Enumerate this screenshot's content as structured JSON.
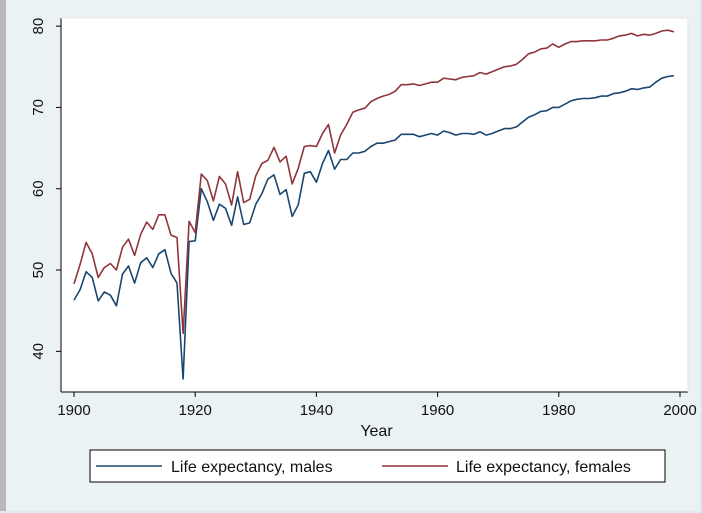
{
  "chart_data": {
    "type": "line",
    "xlabel": "Year",
    "ylabel": "",
    "xlim": [
      1900,
      2000
    ],
    "ylim": [
      35,
      81
    ],
    "xticks": [
      1900,
      1920,
      1940,
      1960,
      1980,
      2000
    ],
    "yticks": [
      40,
      50,
      60,
      70,
      80
    ],
    "grid": false,
    "legend_position": "bottom",
    "x": [
      1900,
      1901,
      1902,
      1903,
      1904,
      1905,
      1906,
      1907,
      1908,
      1909,
      1910,
      1911,
      1912,
      1913,
      1914,
      1915,
      1916,
      1917,
      1918,
      1919,
      1920,
      1921,
      1922,
      1923,
      1924,
      1925,
      1926,
      1927,
      1928,
      1929,
      1930,
      1931,
      1932,
      1933,
      1934,
      1935,
      1936,
      1937,
      1938,
      1939,
      1940,
      1941,
      1942,
      1943,
      1944,
      1945,
      1946,
      1947,
      1948,
      1949,
      1950,
      1951,
      1952,
      1953,
      1954,
      1955,
      1956,
      1957,
      1958,
      1959,
      1960,
      1961,
      1962,
      1963,
      1964,
      1965,
      1966,
      1967,
      1968,
      1969,
      1970,
      1971,
      1972,
      1973,
      1974,
      1975,
      1976,
      1977,
      1978,
      1979,
      1980,
      1981,
      1982,
      1983,
      1984,
      1985,
      1986,
      1987,
      1988,
      1989,
      1990,
      1991,
      1992,
      1993,
      1994,
      1995,
      1996,
      1997,
      1998,
      1999
    ],
    "series": [
      {
        "name": "Life expectancy, males",
        "color": "#1a476f",
        "values": [
          46.3,
          47.6,
          49.8,
          49.1,
          46.2,
          47.3,
          46.9,
          45.6,
          49.5,
          50.5,
          48.4,
          50.9,
          51.5,
          50.3,
          52.0,
          52.5,
          49.6,
          48.4,
          36.6,
          53.5,
          53.6,
          60.0,
          58.4,
          56.1,
          58.1,
          57.6,
          55.5,
          59.0,
          55.6,
          55.8,
          58.1,
          59.4,
          61.2,
          61.7,
          59.3,
          59.9,
          56.6,
          58.0,
          61.9,
          62.1,
          60.8,
          63.1,
          64.7,
          62.4,
          63.6,
          63.6,
          64.4,
          64.4,
          64.6,
          65.2,
          65.6,
          65.6,
          65.8,
          66.0,
          66.7,
          66.7,
          66.7,
          66.4,
          66.6,
          66.8,
          66.6,
          67.1,
          66.9,
          66.6,
          66.8,
          66.8,
          66.7,
          67.0,
          66.6,
          66.8,
          67.1,
          67.4,
          67.4,
          67.6,
          68.2,
          68.8,
          69.1,
          69.5,
          69.6,
          70.0,
          70.0,
          70.4,
          70.8,
          71.0,
          71.1,
          71.1,
          71.2,
          71.4,
          71.4,
          71.7,
          71.8,
          72.0,
          72.3,
          72.2,
          72.4,
          72.5,
          73.1,
          73.6,
          73.8,
          73.9
        ]
      },
      {
        "name": "Life expectancy, females",
        "color": "#90353b",
        "values": [
          48.3,
          50.7,
          53.4,
          52.0,
          49.1,
          50.3,
          50.8,
          50.0,
          52.8,
          53.8,
          51.8,
          54.4,
          55.9,
          55.0,
          56.8,
          56.8,
          54.3,
          54.0,
          42.2,
          56.0,
          54.6,
          61.8,
          61.0,
          58.5,
          61.5,
          60.6,
          58.0,
          62.1,
          58.3,
          58.7,
          61.6,
          63.1,
          63.5,
          65.1,
          63.3,
          64.0,
          60.6,
          62.5,
          65.2,
          65.3,
          65.2,
          66.8,
          67.9,
          64.4,
          66.6,
          67.9,
          69.4,
          69.7,
          69.9,
          70.7,
          71.1,
          71.4,
          71.6,
          72.0,
          72.8,
          72.8,
          72.9,
          72.7,
          72.9,
          73.1,
          73.1,
          73.6,
          73.5,
          73.4,
          73.7,
          73.8,
          73.9,
          74.3,
          74.1,
          74.4,
          74.7,
          75.0,
          75.1,
          75.3,
          75.9,
          76.6,
          76.8,
          77.2,
          77.3,
          77.8,
          77.4,
          77.8,
          78.1,
          78.1,
          78.2,
          78.2,
          78.2,
          78.3,
          78.3,
          78.5,
          78.8,
          78.9,
          79.1,
          78.8,
          79.0,
          78.9,
          79.1,
          79.4,
          79.5,
          79.3
        ]
      }
    ]
  }
}
